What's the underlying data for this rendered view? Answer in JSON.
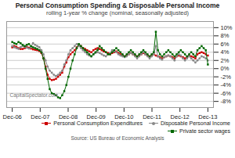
{
  "chart_data": {
    "type": "line",
    "title": "Personal Consumption Spending & Disposable Personal Income",
    "subtitle": "rolling 1-year % change (nominal, seasonally adjusted)",
    "annotations": [
      "CapitalSpectator.com"
    ],
    "caption": "Source: US Bureau of Economic Analysis",
    "x": [
      0,
      0.0745,
      0.1489,
      0.2234,
      0.2979,
      0.3723,
      0.4468,
      0.5213,
      0.5957,
      0.6702,
      0.7447,
      0.8191,
      0.8936,
      0.9681,
      1.0426,
      1.117,
      1.1915,
      1.266,
      1.3404,
      1.4149,
      1.4894,
      1.5638,
      1.6383,
      1.7128,
      1.7872,
      1.8617,
      1.9362,
      2.0106,
      2.0851,
      2.1596,
      2.234,
      2.3085,
      2.383,
      2.4574,
      2.5319,
      2.6064,
      2.6809,
      2.7553,
      2.8298,
      2.9043,
      2.9787,
      3.0532,
      3.1277,
      3.2021,
      3.2766,
      3.3511,
      3.4255,
      3.5,
      3.5745,
      3.6489,
      3.7234,
      3.7979,
      3.8723,
      3.9468,
      4.0213,
      4.0957,
      4.1702,
      4.2447,
      4.3191,
      4.3936,
      4.4681,
      4.5426,
      4.617,
      4.6915,
      4.766,
      4.8404,
      4.9149,
      4.9894,
      5.0638,
      5.1383,
      5.2128,
      5.2872,
      5.3617,
      5.4362,
      5.5106,
      5.5851,
      5.6596,
      5.734,
      5.8085,
      5.883,
      5.9574,
      6.0319,
      6.1064,
      6.1809,
      6.2553,
      6.3298,
      6.4043,
      6.4787,
      6.5532,
      6.6277,
      6.7021,
      6.7766,
      6.8511,
      6.9255,
      7
    ],
    "xlim": [
      -0.2,
      7.2
    ],
    "xticks": [
      {
        "value": 0,
        "label": "Dec-06"
      },
      {
        "value": 1,
        "label": "Dec-07"
      },
      {
        "value": 2,
        "label": "Dec-08"
      },
      {
        "value": 3,
        "label": "Dec-09"
      },
      {
        "value": 4,
        "label": "Dec-10"
      },
      {
        "value": 5,
        "label": "Dec-11"
      },
      {
        "value": 6,
        "label": "Dec-12"
      },
      {
        "value": 7,
        "label": "Dec-13"
      }
    ],
    "ylim": [
      -9.5,
      11.5
    ],
    "yticks": [
      {
        "value": -8,
        "label": "-8%"
      },
      {
        "value": -6,
        "label": "-6%"
      },
      {
        "value": -4,
        "label": "-4%"
      },
      {
        "value": -2,
        "label": "-2%"
      },
      {
        "value": 0,
        "label": "0%"
      },
      {
        "value": 2,
        "label": "2%"
      },
      {
        "value": 4,
        "label": "4%"
      },
      {
        "value": 6,
        "label": "6%"
      },
      {
        "value": 8,
        "label": "8%"
      },
      {
        "value": 10,
        "label": "10%"
      }
    ],
    "grid": true,
    "legend": "lower right",
    "series": [
      {
        "name": "Personal Consumption Expenditures",
        "color": "#cc0000",
        "marker": "square",
        "values": [
          5.2,
          5.5,
          5.3,
          5.0,
          4.8,
          4.8,
          5.0,
          5.3,
          5.1,
          4.9,
          4.7,
          4.6,
          4.5,
          4.3,
          3.8,
          2.5,
          0.5,
          -1.5,
          -2.5,
          -2.8,
          -2.7,
          -2.5,
          -2.0,
          -1.5,
          -1.0,
          0.5,
          1.5,
          2.8,
          3.5,
          4.0,
          4.5,
          5.2,
          5.8,
          5.5,
          5.0,
          4.8,
          4.5,
          4.2,
          4.0,
          4.5,
          4.8,
          5.0,
          4.8,
          4.5,
          4.2,
          4.0,
          3.8,
          3.5,
          3.8,
          4.0,
          4.2,
          3.8,
          3.5,
          3.2,
          3.0,
          3.2,
          3.5,
          3.8,
          3.5,
          3.2,
          3.0,
          3.2,
          3.5,
          3.8,
          3.5,
          3.2,
          3.0,
          3.2,
          3.5,
          3.2,
          3.0,
          2.8,
          2.5,
          2.8,
          3.0,
          3.2,
          3.0,
          2.8,
          2.5,
          3.0,
          3.2,
          3.0,
          2.8,
          2.5,
          2.8,
          3.2,
          3.0,
          2.8,
          2.5,
          3.5,
          3.8,
          4.0,
          3.8,
          3.5,
          3.2
        ]
      },
      {
        "name": "Disposable Personal Income",
        "color": "#888888",
        "marker": "circle",
        "values": [
          5.5,
          5.2,
          5.0,
          4.8,
          5.2,
          5.5,
          5.3,
          5.1,
          4.9,
          5.2,
          6.2,
          5.8,
          5.5,
          5.2,
          4.5,
          3.5,
          2.0,
          0.5,
          -0.5,
          -1.0,
          -1.5,
          -1.8,
          -1.5,
          -1.0,
          -0.5,
          1.0,
          2.0,
          3.5,
          4.5,
          5.0,
          5.5,
          6.0,
          5.5,
          5.0,
          4.5,
          4.0,
          3.5,
          3.2,
          3.0,
          3.5,
          3.8,
          4.0,
          3.8,
          3.5,
          3.2,
          3.0,
          3.5,
          3.8,
          4.5,
          4.2,
          4.0,
          3.5,
          3.2,
          3.0,
          2.8,
          3.0,
          3.5,
          3.8,
          3.5,
          3.0,
          2.5,
          3.0,
          3.5,
          4.0,
          3.5,
          3.0,
          2.5,
          3.0,
          3.5,
          5.5,
          3.0,
          2.5,
          2.2,
          2.8,
          3.0,
          3.2,
          3.0,
          2.5,
          2.0,
          3.0,
          3.5,
          3.2,
          2.5,
          2.0,
          2.5,
          3.0,
          2.5,
          2.0,
          1.5,
          2.0,
          2.5,
          3.0,
          2.8,
          2.5,
          2.0
        ]
      },
      {
        "name": "Private sector wages",
        "color": "#006600",
        "marker": "square",
        "values": [
          6.5,
          6.2,
          6.0,
          6.5,
          6.2,
          5.8,
          5.5,
          5.8,
          6.0,
          5.5,
          5.2,
          5.0,
          4.8,
          4.5,
          4.0,
          2.5,
          0.0,
          -2.5,
          -5.0,
          -6.0,
          -6.2,
          -6.5,
          -7.0,
          -7.2,
          -6.5,
          -5.5,
          -4.0,
          -2.0,
          0.0,
          2.0,
          3.5,
          5.0,
          6.0,
          5.5,
          5.0,
          4.5,
          4.0,
          3.5,
          3.0,
          3.5,
          4.0,
          4.5,
          5.5,
          5.0,
          4.5,
          4.0,
          3.5,
          3.5,
          4.0,
          4.5,
          5.0,
          4.5,
          4.0,
          3.5,
          3.0,
          3.5,
          4.0,
          4.5,
          4.0,
          3.5,
          3.0,
          3.5,
          4.0,
          4.5,
          4.0,
          3.5,
          3.0,
          3.5,
          4.0,
          9.0,
          4.5,
          3.5,
          3.0,
          3.5,
          4.0,
          4.5,
          4.0,
          3.5,
          3.0,
          3.5,
          4.0,
          4.5,
          4.0,
          3.5,
          3.0,
          3.5,
          4.0,
          3.5,
          3.0,
          4.5,
          5.0,
          5.5,
          5.0,
          4.5,
          1.0
        ]
      }
    ]
  }
}
